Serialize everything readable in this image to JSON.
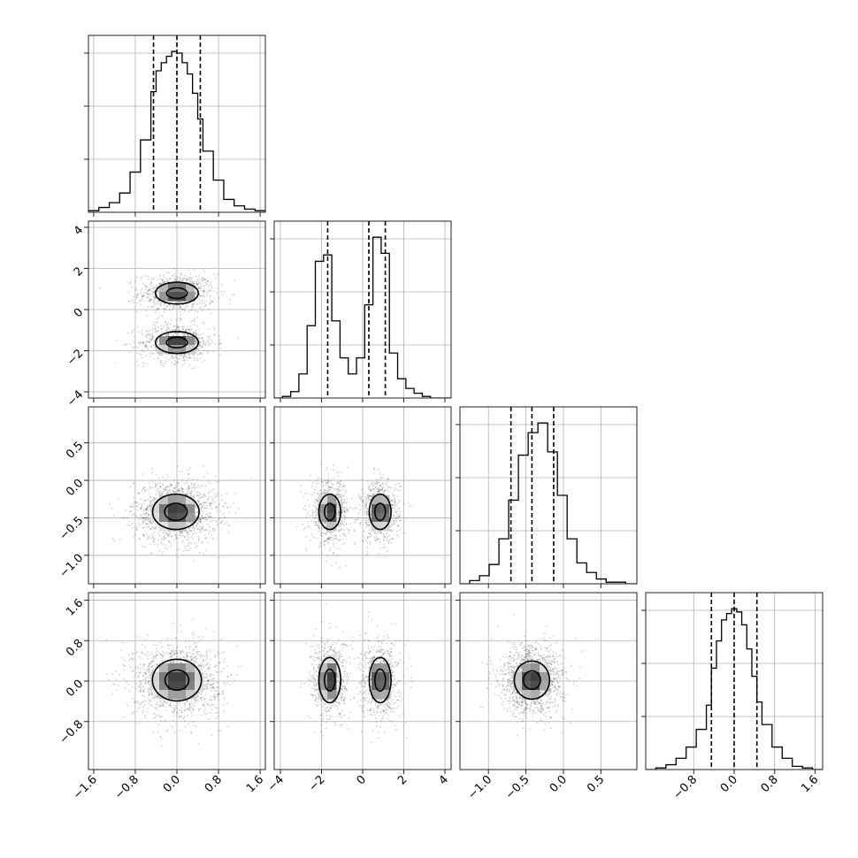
{
  "chart_data": {
    "type": "corner",
    "parameters": [
      {
        "key": "p0",
        "range": [
          -1.7,
          1.7
        ],
        "ticks": [
          -1.6,
          -0.8,
          0.0,
          0.8,
          1.6
        ],
        "tick_labels": [
          "−1.6",
          "−0.8",
          "0.0",
          "0.8",
          "1.6"
        ],
        "quantiles": [
          -0.45,
          0.0,
          0.45
        ],
        "histogram": {
          "bin_edges": [
            -1.7,
            -1.5,
            -1.3,
            -1.1,
            -0.9,
            -0.7,
            -0.5,
            -0.4,
            -0.3,
            -0.2,
            -0.1,
            0.0,
            0.1,
            0.2,
            0.3,
            0.4,
            0.5,
            0.7,
            0.9,
            1.1,
            1.3,
            1.5,
            1.7
          ],
          "counts": [
            1,
            3,
            6,
            12,
            25,
            45,
            75,
            88,
            93,
            97,
            100,
            99,
            93,
            86,
            74,
            58,
            38,
            20,
            8,
            4,
            2,
            1
          ]
        }
      },
      {
        "key": "p1",
        "range": [
          -4.3,
          4.3
        ],
        "ticks": [
          -4,
          -2,
          0,
          2,
          4
        ],
        "tick_labels": [
          "−4",
          "−2",
          "0",
          "2",
          "4"
        ],
        "quantiles": [
          -1.7,
          0.3,
          1.1
        ],
        "histogram": {
          "bin_edges": [
            -4.3,
            -3.9,
            -3.5,
            -3.1,
            -2.7,
            -2.3,
            -1.9,
            -1.5,
            -1.1,
            -0.7,
            -0.3,
            0.1,
            0.5,
            0.9,
            1.3,
            1.7,
            2.1,
            2.5,
            2.9,
            3.3,
            3.7,
            4.1,
            4.3
          ],
          "counts": [
            0,
            1,
            4,
            15,
            45,
            85,
            89,
            48,
            25,
            15,
            25,
            58,
            100,
            90,
            28,
            12,
            6,
            3,
            1,
            0,
            0,
            0
          ]
        }
      },
      {
        "key": "p2",
        "range": [
          -1.38,
          0.98
        ],
        "ticks": [
          -1.0,
          -0.5,
          0.0,
          0.5
        ],
        "tick_labels": [
          "−1.0",
          "−0.5",
          "0.0",
          "0.5"
        ],
        "quantiles": [
          -0.7,
          -0.42,
          -0.13
        ],
        "histogram": {
          "bin_edges": [
            -1.38,
            -1.25,
            -1.12,
            -0.99,
            -0.86,
            -0.73,
            -0.6,
            -0.47,
            -0.34,
            -0.21,
            -0.08,
            0.05,
            0.18,
            0.31,
            0.44,
            0.57,
            0.7,
            0.83,
            0.98
          ],
          "counts": [
            0,
            2,
            5,
            12,
            28,
            52,
            80,
            94,
            100,
            82,
            55,
            28,
            13,
            7,
            3,
            1,
            1,
            0
          ]
        }
      },
      {
        "key": "p3",
        "range": [
          -1.75,
          1.75
        ],
        "ticks": [
          -0.8,
          0.0,
          0.8,
          1.6
        ],
        "tick_labels": [
          "−0.8",
          "0.0",
          "0.8",
          "1.6"
        ],
        "yticks": [
          -0.8,
          0.0,
          0.8,
          1.6
        ],
        "quantiles": [
          -0.45,
          0.0,
          0.45
        ],
        "histogram": {
          "bin_edges": [
            -1.75,
            -1.55,
            -1.35,
            -1.15,
            -0.95,
            -0.75,
            -0.55,
            -0.45,
            -0.35,
            -0.25,
            -0.15,
            -0.05,
            0.05,
            0.15,
            0.25,
            0.35,
            0.45,
            0.55,
            0.75,
            0.95,
            1.15,
            1.35,
            1.55,
            1.75
          ],
          "counts": [
            0,
            1,
            3,
            7,
            14,
            25,
            40,
            63,
            80,
            93,
            97,
            100,
            98,
            90,
            75,
            58,
            42,
            28,
            14,
            7,
            2,
            1,
            0
          ]
        }
      }
    ],
    "pairs": [
      {
        "x": "p0",
        "y": "p1",
        "modes": [
          {
            "cx": 0.0,
            "cy": 0.8,
            "sx": 0.35,
            "sy": 0.45
          },
          {
            "cx": 0.0,
            "cy": -1.6,
            "sx": 0.35,
            "sy": 0.45
          }
        ]
      },
      {
        "x": "p0",
        "y": "p2",
        "modes": [
          {
            "cx": -0.02,
            "cy": -0.42,
            "sx": 0.38,
            "sy": 0.2
          }
        ]
      },
      {
        "x": "p1",
        "y": "p2",
        "modes": [
          {
            "cx": -1.6,
            "cy": -0.42,
            "sx": 0.45,
            "sy": 0.2
          },
          {
            "cx": 0.85,
            "cy": -0.42,
            "sx": 0.45,
            "sy": 0.2
          }
        ]
      },
      {
        "x": "p0",
        "y": "p3",
        "modes": [
          {
            "cx": 0.0,
            "cy": 0.02,
            "sx": 0.4,
            "sy": 0.35
          }
        ]
      },
      {
        "x": "p1",
        "y": "p3",
        "modes": [
          {
            "cx": -1.6,
            "cy": 0.02,
            "sx": 0.45,
            "sy": 0.38
          },
          {
            "cx": 0.85,
            "cy": 0.02,
            "sx": 0.45,
            "sy": 0.38
          }
        ]
      },
      {
        "x": "p2",
        "y": "p3",
        "modes": [
          {
            "cx": -0.42,
            "cy": 0.02,
            "sx": 0.2,
            "sy": 0.32
          }
        ]
      }
    ],
    "contour_levels": [
      0.5,
      0.85,
      1.15
    ],
    "grid": true
  }
}
